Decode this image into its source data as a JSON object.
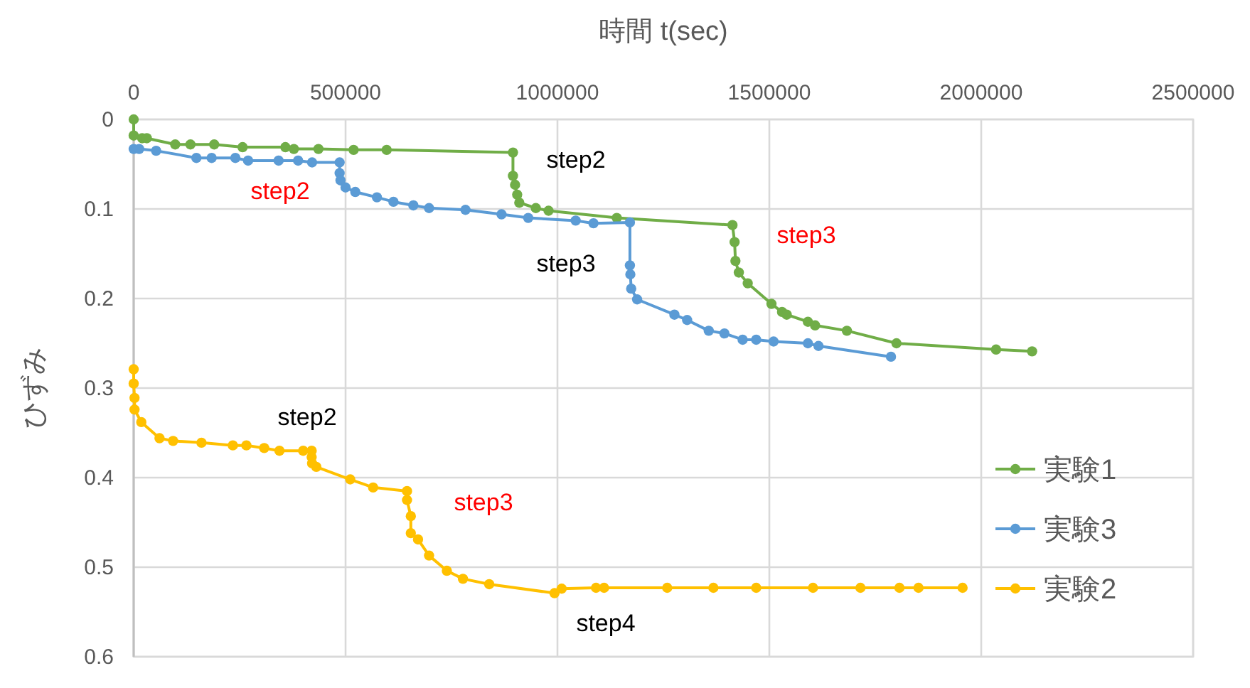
{
  "chart_data": {
    "type": "line",
    "xlabel": "時間 t(sec)",
    "ylabel": "ひずみ",
    "xlim": [
      0,
      2500000
    ],
    "xticks": [
      0,
      500000,
      1000000,
      1500000,
      2000000,
      2500000
    ],
    "ylim": [
      0.6,
      0
    ],
    "yticks": [
      0,
      0.1,
      0.2,
      0.3,
      0.4,
      0.5,
      0.6
    ],
    "grid": true,
    "legend": "right",
    "marker": "circle",
    "line_style": "solid",
    "series": [
      {
        "name": "実験1",
        "color": "#70ad47",
        "x": [
          0,
          0,
          20000,
          31000,
          98000,
          134000,
          190000,
          257000,
          358000,
          378000,
          436000,
          519000,
          597000,
          895000,
          895000,
          900000,
          905000,
          910000,
          949000,
          979000,
          1140000,
          1413000,
          1418000,
          1420000,
          1428000,
          1449000,
          1505000,
          1530000,
          1541000,
          1591000,
          1608000,
          1683000,
          1800000,
          2035000,
          2120000
        ],
        "values": [
          0,
          0.018,
          0.021,
          0.021,
          0.028,
          0.028,
          0.028,
          0.031,
          0.031,
          0.033,
          0.033,
          0.034,
          0.034,
          0.037,
          0.063,
          0.073,
          0.084,
          0.093,
          0.099,
          0.102,
          0.11,
          0.118,
          0.137,
          0.158,
          0.171,
          0.183,
          0.206,
          0.215,
          0.218,
          0.226,
          0.23,
          0.236,
          0.25,
          0.257,
          0.259
        ]
      },
      {
        "name": "実験3",
        "color": "#5b9bd5",
        "x": [
          0,
          13000,
          53000,
          148000,
          184000,
          240000,
          270000,
          342000,
          388000,
          421000,
          486000,
          486000,
          488000,
          500000,
          523000,
          574000,
          613000,
          660000,
          697000,
          783000,
          868000,
          931000,
          1043000,
          1085000,
          1171000,
          1171000,
          1172000,
          1174000,
          1188000,
          1276000,
          1306000,
          1357000,
          1394000,
          1437000,
          1469000,
          1510000,
          1591000,
          1616000,
          1787000
        ],
        "values": [
          0.033,
          0.033,
          0.035,
          0.043,
          0.043,
          0.043,
          0.046,
          0.046,
          0.046,
          0.048,
          0.048,
          0.06,
          0.068,
          0.076,
          0.081,
          0.087,
          0.092,
          0.096,
          0.099,
          0.101,
          0.106,
          0.11,
          0.113,
          0.116,
          0.115,
          0.163,
          0.173,
          0.189,
          0.201,
          0.218,
          0.224,
          0.236,
          0.239,
          0.246,
          0.246,
          0.248,
          0.25,
          0.253,
          0.265
        ]
      },
      {
        "name": "実験2",
        "color": "#ffc000",
        "x": [
          0,
          0,
          2000,
          2000,
          18000,
          61000,
          93000,
          160000,
          234000,
          266000,
          308000,
          344000,
          400000,
          420000,
          420000,
          421000,
          431000,
          511000,
          565000,
          645000,
          645000,
          654000,
          654000,
          671000,
          697000,
          739000,
          777000,
          839000,
          993000,
          1010000,
          1091000,
          1110000,
          1259000,
          1368000,
          1469000,
          1603000,
          1715000,
          1807000,
          1852000,
          1956000
        ],
        "values": [
          0.279,
          0.295,
          0.311,
          0.324,
          0.338,
          0.356,
          0.359,
          0.361,
          0.364,
          0.364,
          0.367,
          0.37,
          0.37,
          0.37,
          0.377,
          0.384,
          0.388,
          0.402,
          0.411,
          0.415,
          0.425,
          0.443,
          0.462,
          0.469,
          0.487,
          0.504,
          0.513,
          0.519,
          0.529,
          0.524,
          0.523,
          0.523,
          0.523,
          0.523,
          0.523,
          0.523,
          0.523,
          0.523,
          0.523,
          0.523
        ]
      }
    ],
    "annotations": [
      "step2",
      "step2",
      "step3",
      "step3",
      "step2",
      "step3",
      "step4"
    ]
  }
}
